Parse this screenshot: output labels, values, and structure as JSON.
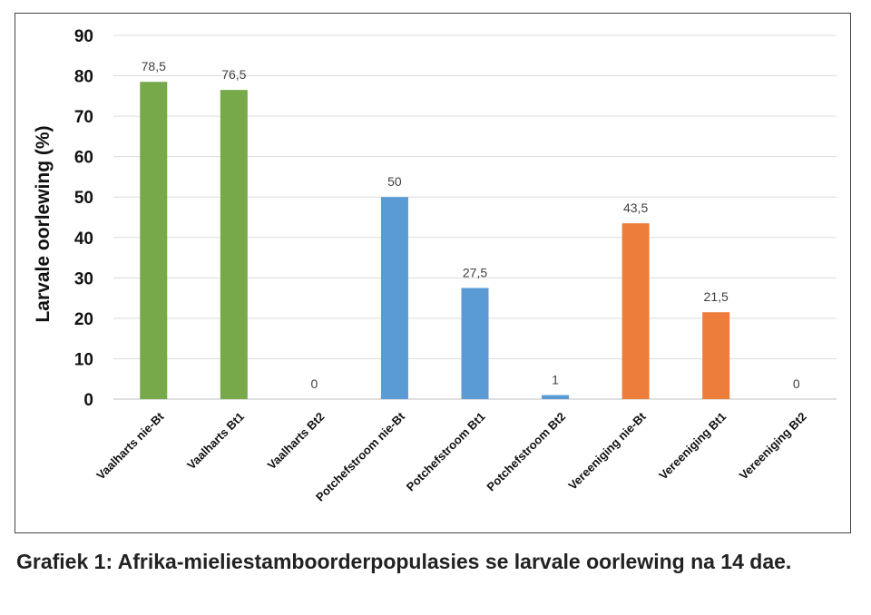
{
  "caption": "Grafiek 1: Afrika-mieliestamboorderpopulasies se larvale oorlewing na 14 dae.",
  "chart_data": {
    "type": "bar",
    "title": "",
    "ylabel": "Larvale oorlewing (%)",
    "xlabel": "",
    "ylim": [
      0,
      90
    ],
    "yticks": [
      0,
      10,
      20,
      30,
      40,
      50,
      60,
      70,
      80,
      90
    ],
    "grid": true,
    "categories": [
      "Vaalharts nie-Bt",
      "Vaalharts Bt1",
      "Vaalharts Bt2",
      "Potchefstroom nie-Bt",
      "Potchefstroom Bt1",
      "Potchefstroom Bt2",
      "Vereeniging nie-Bt",
      "Vereeniging Bt1",
      "Vereeniging Bt2"
    ],
    "values": [
      78.5,
      76.5,
      0,
      50,
      27.5,
      1,
      43.5,
      21.5,
      0
    ],
    "data_labels": [
      "78,5",
      "76,5",
      "0",
      "50",
      "27,5",
      "1",
      "43,5",
      "21,5",
      "0"
    ],
    "colors": [
      "#77a84a",
      "#77a84a",
      "#77a84a",
      "#5b9bd5",
      "#5b9bd5",
      "#5b9bd5",
      "#ec7d3a",
      "#ec7d3a",
      "#ec7d3a"
    ]
  }
}
